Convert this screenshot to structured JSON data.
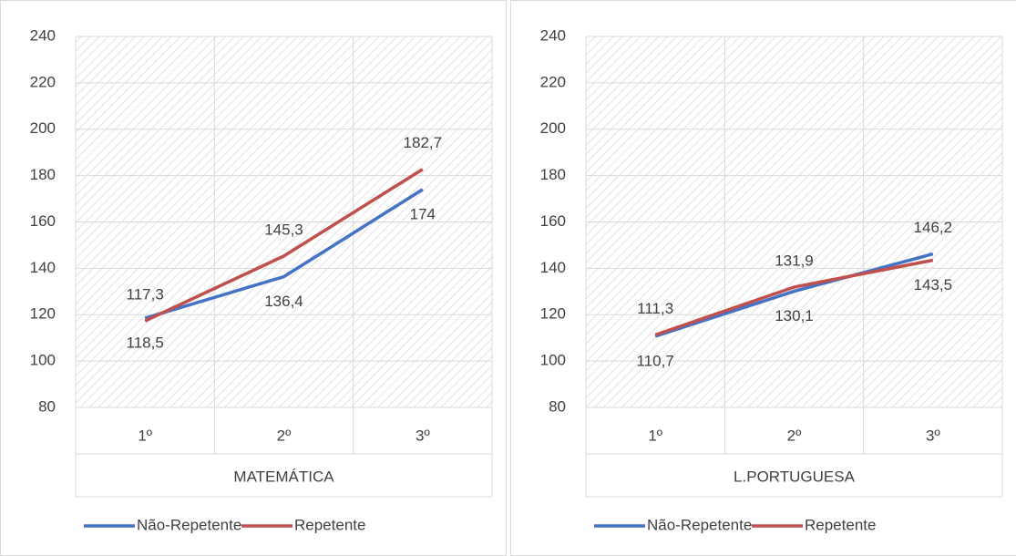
{
  "chart_data": [
    {
      "type": "line",
      "categories": [
        "1º",
        "2º",
        "3º"
      ],
      "category_group": "MATEMÁTICA",
      "series": [
        {
          "name": "Não-Repetente",
          "color": "#4472c4",
          "values": [
            118.5,
            136.4,
            174
          ],
          "value_labels": [
            "118,5",
            "136,4",
            "174"
          ]
        },
        {
          "name": "Repetente",
          "color": "#c0504d",
          "values": [
            117.3,
            145.3,
            182.7
          ],
          "value_labels": [
            "117,3",
            "145,3",
            "182,7"
          ]
        }
      ],
      "ylim": [
        80,
        240
      ],
      "yticks": [
        80,
        100,
        120,
        140,
        160,
        180,
        200,
        220,
        240
      ],
      "grid": true,
      "legend": "bottom"
    },
    {
      "type": "line",
      "categories": [
        "1º",
        "2º",
        "3º"
      ],
      "category_group": "L.PORTUGUESA",
      "series": [
        {
          "name": "Não-Repetente",
          "color": "#4472c4",
          "values": [
            110.7,
            130.1,
            146.2
          ],
          "value_labels": [
            "110,7",
            "130,1",
            "146,2"
          ]
        },
        {
          "name": "Repetente",
          "color": "#c0504d",
          "values": [
            111.3,
            131.9,
            143.5
          ],
          "value_labels": [
            "111,3",
            "131,9",
            "143,5"
          ]
        }
      ],
      "ylim": [
        80,
        240
      ],
      "yticks": [
        80,
        100,
        120,
        140,
        160,
        180,
        200,
        220,
        240
      ],
      "grid": true,
      "legend": "bottom"
    }
  ]
}
